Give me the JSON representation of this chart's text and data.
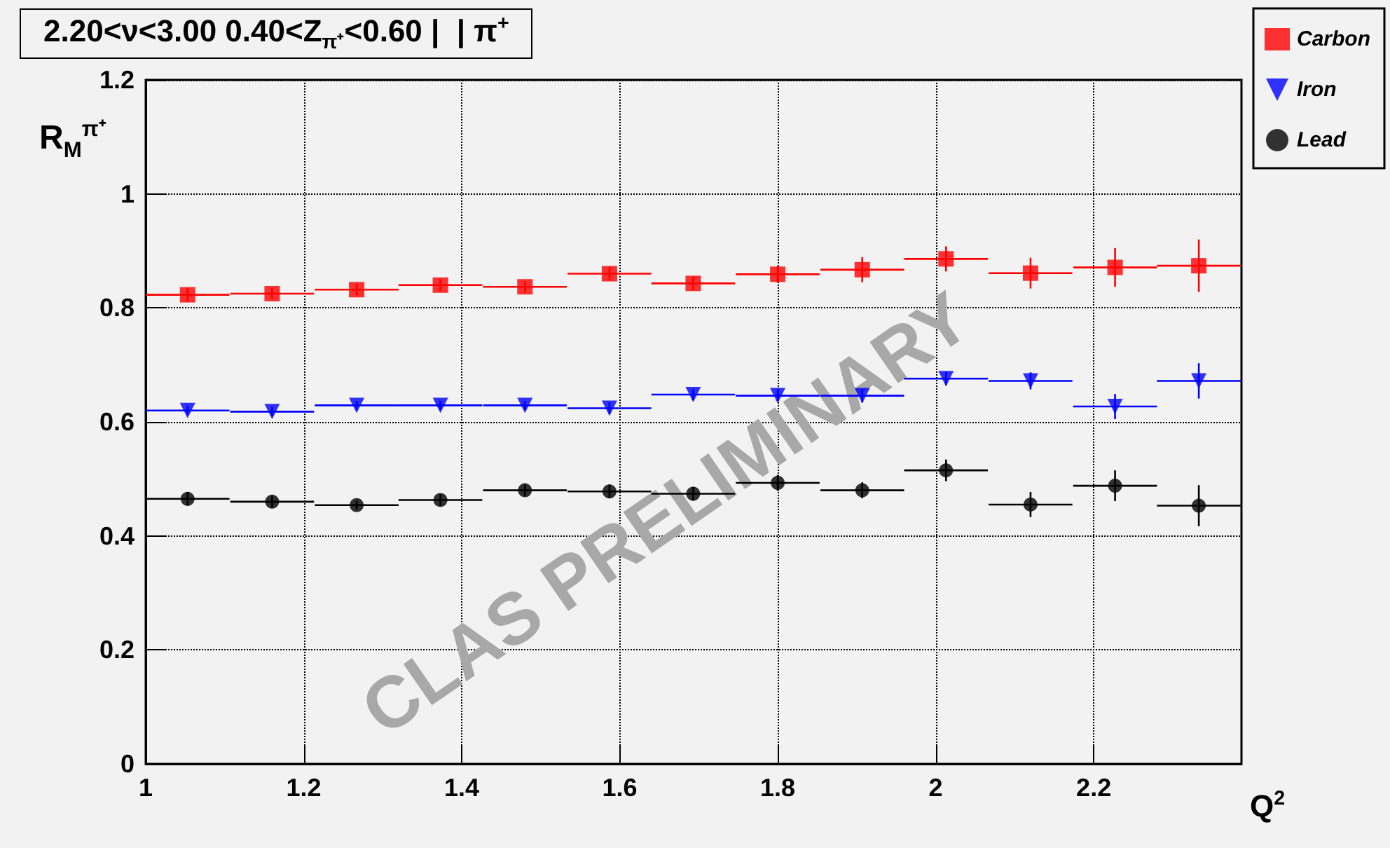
{
  "chart_data": {
    "type": "scatter",
    "title": "2.20<ν<3.00 0.40<Z$_{π⁺}$<0.60 |  | π$^{+}$",
    "xlabel": "Q$^{2}$",
    "ylabel": "R$_{M}$$^{π⁺}$",
    "annotations": [
      "CLAS PRELIMINARY"
    ],
    "x": [
      1.053,
      1.16,
      1.267,
      1.373,
      1.48,
      1.587,
      1.693,
      1.8,
      1.907,
      2.013,
      2.12,
      2.227,
      2.333
    ],
    "series": [
      {
        "name": "Carbon",
        "color": "#ff0000",
        "marker": "square",
        "values": [
          0.823,
          0.825,
          0.832,
          0.84,
          0.837,
          0.86,
          0.843,
          0.859,
          0.867,
          0.886,
          0.861,
          0.871,
          0.874
        ],
        "errors": [
          0.012,
          0.01,
          0.01,
          0.01,
          0.01,
          0.012,
          0.012,
          0.015,
          0.022,
          0.022,
          0.027,
          0.034,
          0.046
        ],
        "xerrors": [
          0.053,
          0.053,
          0.053,
          0.053,
          0.053,
          0.053,
          0.053,
          0.053,
          0.053,
          0.053,
          0.053,
          0.053,
          0.053
        ]
      },
      {
        "name": "Iron",
        "color": "#0000ff",
        "marker": "triangle",
        "values": [
          0.62,
          0.618,
          0.629,
          0.629,
          0.629,
          0.624,
          0.648,
          0.646,
          0.646,
          0.676,
          0.672,
          0.627,
          0.672
        ],
        "errors": [
          0.008,
          0.008,
          0.008,
          0.008,
          0.008,
          0.01,
          0.01,
          0.01,
          0.012,
          0.012,
          0.015,
          0.022,
          0.031
        ],
        "xerrors": [
          0.053,
          0.053,
          0.053,
          0.053,
          0.053,
          0.053,
          0.053,
          0.053,
          0.053,
          0.053,
          0.053,
          0.053,
          0.053
        ]
      },
      {
        "name": "Lead",
        "color": "#000000",
        "marker": "circle",
        "values": [
          0.465,
          0.46,
          0.454,
          0.463,
          0.48,
          0.478,
          0.474,
          0.493,
          0.48,
          0.515,
          0.455,
          0.488,
          0.453
        ],
        "errors": [
          0.012,
          0.01,
          0.008,
          0.01,
          0.01,
          0.012,
          0.012,
          0.014,
          0.014,
          0.019,
          0.022,
          0.027,
          0.036
        ],
        "xerrors": [
          0.053,
          0.053,
          0.053,
          0.053,
          0.053,
          0.053,
          0.053,
          0.053,
          0.053,
          0.053,
          0.053,
          0.053,
          0.053
        ]
      }
    ],
    "xlim": [
      1,
      2.387
    ],
    "xticks": [
      1,
      1.2,
      1.4,
      1.6,
      1.8,
      2,
      2.2
    ],
    "ylim": [
      0,
      1.2
    ],
    "yticks": [
      0,
      0.2,
      0.4,
      0.6,
      0.8,
      1,
      1.2
    ],
    "grid": true,
    "legend": "top right",
    "line_style": "dotted"
  }
}
